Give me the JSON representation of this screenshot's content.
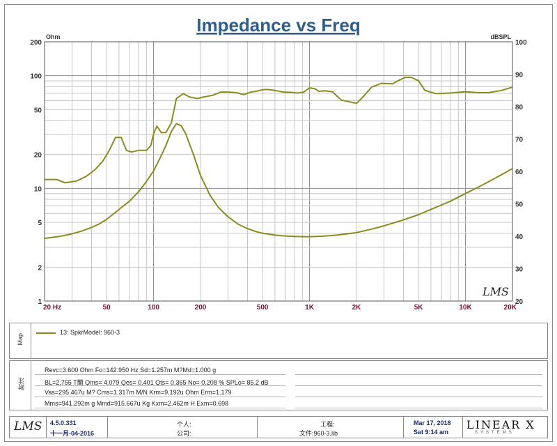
{
  "chart_data": {
    "type": "line",
    "title": "Impedance vs Freq",
    "left_axis": {
      "unit": "Ohm",
      "scale": "log",
      "range": [
        1,
        200
      ],
      "ticks": [
        1,
        2,
        5,
        10,
        20,
        50,
        100,
        200
      ]
    },
    "right_axis": {
      "unit": "dBSPL",
      "scale": "linear",
      "range": [
        20,
        100
      ],
      "ticks": [
        20,
        30,
        40,
        50,
        60,
        70,
        80,
        90,
        100
      ]
    },
    "x_axis": {
      "scale": "log",
      "range": [
        20,
        20000
      ],
      "tick_labels": [
        {
          "v": 20,
          "label": "20  Hz"
        },
        {
          "v": 50,
          "label": "50"
        },
        {
          "v": 100,
          "label": "100"
        },
        {
          "v": 200,
          "label": "200"
        },
        {
          "v": 500,
          "label": "500"
        },
        {
          "v": 1000,
          "label": "1K"
        },
        {
          "v": 2000,
          "label": "2K"
        },
        {
          "v": 5000,
          "label": "5K"
        },
        {
          "v": 10000,
          "label": "10K"
        },
        {
          "v": 20000,
          "label": "20K"
        }
      ]
    },
    "grid": true,
    "series": [
      {
        "axis": "right",
        "color": "#8c8a1e",
        "x": [
          20,
          24,
          27,
          32,
          37,
          42,
          47,
          52,
          57,
          62,
          67,
          72,
          80,
          90,
          96,
          100,
          105,
          112,
          120,
          130,
          140,
          155,
          170,
          190,
          210,
          240,
          270,
          300,
          340,
          380,
          420,
          460,
          500,
          540,
          600,
          680,
          760,
          840,
          920,
          1000,
          1080,
          1150,
          1250,
          1400,
          1600,
          1800,
          2000,
          2200,
          2500,
          2900,
          3400,
          3700,
          4100,
          4500,
          5000,
          5500,
          6500,
          8000,
          10000,
          12000,
          14000,
          17000,
          20000
        ],
        "y": [
          57.5,
          57.5,
          56.5,
          57,
          58.5,
          60.5,
          63,
          66.5,
          70.5,
          70.5,
          66.5,
          66,
          66.5,
          66.5,
          68,
          71.5,
          74,
          72,
          72,
          75,
          82.5,
          84,
          83,
          82.5,
          83,
          83.5,
          84.5,
          84.5,
          84.3,
          83.7,
          84.5,
          84.8,
          85.2,
          85.3,
          85,
          84.5,
          84.4,
          84.2,
          84.5,
          85.8,
          85.5,
          84.7,
          84.9,
          84.6,
          82,
          81.5,
          81,
          83,
          86,
          87.2,
          87,
          88,
          89,
          89,
          88,
          85,
          84,
          84.2,
          84.6,
          84.3,
          84.3,
          85,
          86
        ]
      },
      {
        "axis": "left",
        "color": "#8c8a1e",
        "x": [
          20,
          25,
          30,
          35,
          40,
          45,
          50,
          55,
          60,
          70,
          80,
          90,
          100,
          110,
          120,
          130,
          140,
          150,
          160,
          180,
          200,
          230,
          260,
          300,
          350,
          400,
          450,
          500,
          600,
          700,
          800,
          900,
          1000,
          1200,
          1500,
          2000,
          2500,
          3000,
          4000,
          5000,
          6000,
          8000,
          10000,
          12000,
          15000,
          20000
        ],
        "y": [
          3.6,
          3.75,
          3.95,
          4.2,
          4.5,
          4.85,
          5.3,
          5.9,
          6.5,
          7.7,
          9.3,
          11.5,
          14.3,
          18.5,
          24,
          32,
          37.5,
          36,
          31,
          20,
          13,
          8.7,
          6.8,
          5.6,
          4.8,
          4.4,
          4.15,
          4.0,
          3.85,
          3.78,
          3.75,
          3.73,
          3.73,
          3.76,
          3.85,
          4.05,
          4.35,
          4.65,
          5.25,
          5.85,
          6.5,
          7.7,
          9.0,
          10.2,
          12.0,
          15.0
        ]
      }
    ]
  },
  "logo_text": "LMS",
  "map_panel": {
    "label": "Map",
    "legend": "13: SpkrModel: 960-3"
  },
  "notes_panel": {
    "label": "附注",
    "lines": [
      "Revc=3.600 Ohm  Fo=142.950 Hz  Sd=1.257m M?Md=1.000 g",
      "BL=2.755 T蘭  Qms= 4.079  Qes= 0.401  Qts= 0.365  No= 0.208 %  SPLo= 85.2 dB",
      "Vas=295.467u M? Cms=1.317m M/N  Krm=9.192u Ohm  Erm=1.179",
      "Mms=941.292m g  Mmd=915.667u Kg  Kxm=2.462m H  Exm=0.698"
    ]
  },
  "footer": {
    "logo": "LMS",
    "version": "4.5.0.331",
    "build_date": "十一月-04-2016",
    "person_label": "个人:",
    "company_label": "公司:",
    "project_label": "工程:",
    "file_label": "文件:960-3.lib",
    "date": "Mar 17, 2018",
    "time": "Sat  9:14 am",
    "brand": "LINEAR X",
    "brand_sub": "SYSTEMS"
  }
}
